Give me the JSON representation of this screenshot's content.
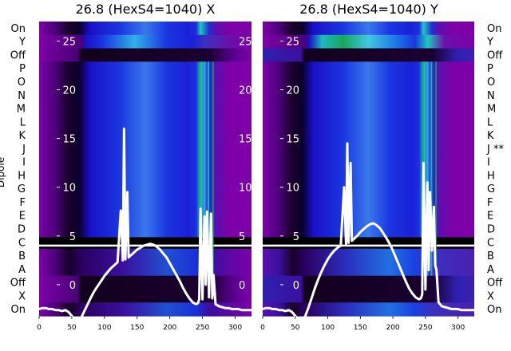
{
  "chart_data": [
    {
      "type": "heatmap",
      "title": "26.8 (HexS4=1040) X",
      "ylabel": "Dipole",
      "row_labels_left": [
        "On",
        "Y",
        "Off",
        "P",
        "O",
        "N",
        "M",
        "L",
        "K",
        "J",
        "I",
        "H",
        "G",
        "F",
        "E",
        "D",
        "C",
        "B",
        "A",
        "Off",
        "X",
        "On"
      ],
      "x_ticks": [
        0,
        50,
        100,
        150,
        200,
        250,
        300
      ],
      "xlim": [
        0,
        325
      ],
      "overlay_y_ticks": [
        25,
        20,
        15,
        10,
        5,
        0
      ],
      "overlay_ylim": [
        -3.2,
        27
      ],
      "overlay_line": {
        "color": "#ffffff",
        "x": [
          0,
          5,
          10,
          15,
          20,
          25,
          30,
          35,
          40,
          45,
          50,
          55,
          60,
          65,
          70,
          75,
          80,
          85,
          90,
          95,
          100,
          105,
          110,
          115,
          120,
          125,
          128,
          130,
          132,
          135,
          137,
          140,
          145,
          150,
          155,
          160,
          165,
          170,
          175,
          180,
          185,
          190,
          195,
          200,
          205,
          210,
          215,
          220,
          225,
          230,
          235,
          240,
          243,
          245,
          247,
          250,
          253,
          255,
          257,
          260,
          263,
          265,
          267,
          270,
          275,
          280,
          285,
          290,
          295,
          300,
          305,
          310,
          315,
          320,
          325
        ],
        "y": [
          -2.5,
          -2.4,
          -2.4,
          -2.5,
          -2.5,
          -2.6,
          -2.6,
          -2.7,
          -2.6,
          -2.8,
          -3.2,
          -3.6,
          -3.7,
          -3.3,
          -2.6,
          -1.9,
          -1.2,
          -0.6,
          -0.1,
          0.4,
          0.9,
          1.3,
          1.7,
          2.0,
          2.3,
          7.6,
          2.5,
          16.0,
          2.6,
          9.5,
          2.8,
          3.0,
          3.3,
          3.6,
          3.8,
          4.0,
          4.1,
          4.2,
          4.1,
          3.9,
          3.6,
          3.2,
          2.8,
          2.2,
          1.6,
          1.0,
          0.4,
          -0.3,
          -0.9,
          -1.4,
          -1.8,
          -2.0,
          -1.9,
          -1.5,
          7.8,
          -1.5,
          7.0,
          0.0,
          7.5,
          -1.3,
          7.3,
          -1.4,
          1.0,
          -2.0,
          -2.2,
          -2.3,
          -2.4,
          -2.4,
          -2.5,
          -2.5,
          -2.5,
          -2.6,
          -2.6,
          -2.6,
          -2.6
        ]
      }
    },
    {
      "type": "heatmap",
      "title": "26.8 (HexS4=1040) Y",
      "row_labels_right": [
        "On",
        "Y",
        "Off",
        "P",
        "O",
        "N",
        "M",
        "L",
        "K",
        "J **",
        "I",
        "H",
        "G",
        "F",
        "E",
        "D",
        "C",
        "B",
        "A",
        "Off",
        "X",
        "On"
      ],
      "x_ticks": [
        0,
        50,
        100,
        150,
        200,
        250,
        300
      ],
      "xlim": [
        0,
        325
      ],
      "overlay_y_ticks": [
        25,
        20,
        15,
        10,
        5,
        0
      ],
      "overlay_ylim": [
        -3.2,
        27
      ],
      "overlay_line": {
        "color": "#ffffff",
        "x": [
          0,
          5,
          10,
          15,
          20,
          25,
          30,
          35,
          40,
          45,
          50,
          55,
          60,
          65,
          70,
          75,
          80,
          85,
          90,
          95,
          100,
          105,
          110,
          115,
          120,
          125,
          128,
          130,
          132,
          135,
          137,
          140,
          145,
          150,
          155,
          160,
          165,
          170,
          175,
          180,
          185,
          190,
          195,
          200,
          205,
          210,
          215,
          220,
          225,
          230,
          235,
          240,
          243,
          245,
          247,
          250,
          253,
          255,
          257,
          260,
          263,
          265,
          267,
          270,
          275,
          280,
          285,
          290,
          295,
          300,
          305,
          310,
          315,
          320,
          325
        ],
        "y": [
          -2.5,
          -2.4,
          -2.4,
          -2.5,
          -2.5,
          -2.6,
          -2.6,
          -2.7,
          -2.6,
          -2.8,
          -3.2,
          -3.6,
          -3.7,
          -3.3,
          -2.4,
          -1.4,
          -0.4,
          0.5,
          1.3,
          2.0,
          2.6,
          3.1,
          3.5,
          3.8,
          4.0,
          10.0,
          4.2,
          14.5,
          4.3,
          12.5,
          4.5,
          4.7,
          5.0,
          5.4,
          5.7,
          6.0,
          6.2,
          6.3,
          6.1,
          5.8,
          5.3,
          4.8,
          4.2,
          3.5,
          2.7,
          1.9,
          1.1,
          0.3,
          -0.4,
          -0.9,
          -1.3,
          -1.5,
          -1.4,
          -1.0,
          12.5,
          -0.5,
          10.5,
          1.5,
          9.5,
          3.5,
          8.0,
          2.0,
          1.5,
          -1.8,
          -2.2,
          -2.3,
          -2.4,
          -2.5,
          -2.5,
          -2.5,
          -2.6,
          -2.6,
          -2.6,
          -2.6,
          -2.6
        ]
      }
    }
  ],
  "colors": {
    "purple": "#7d00a8",
    "dark": "#12001c",
    "blue": "#1a36e0",
    "light_blue": "#49a6ee",
    "cyan": "#1ec8c0",
    "green": "#15a85a",
    "separator": "#ffffff",
    "black_band": "#000000"
  }
}
